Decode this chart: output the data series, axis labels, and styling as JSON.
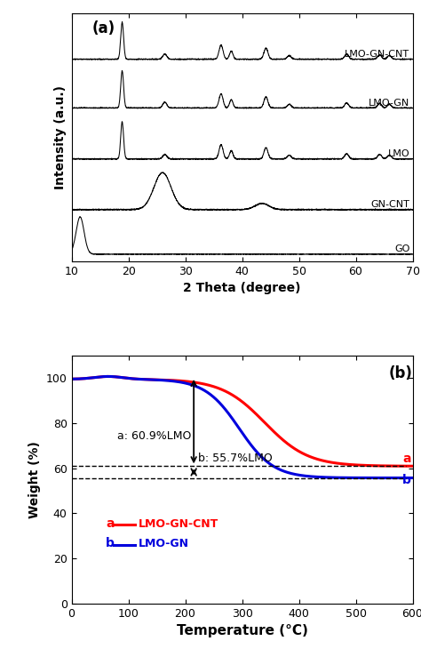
{
  "panel_a_label": "(a)",
  "panel_b_label": "(b)",
  "xrd_xlabel": "2 Theta (degree)",
  "xrd_ylabel": "Intensity (a.u.)",
  "xrd_xlim": [
    10,
    70
  ],
  "xrd_labels": [
    "GO",
    "GN-CNT",
    "LMO",
    "LMO-GN",
    "LMO-GN-CNT"
  ],
  "tga_xlabel": "Temperature (°C)",
  "tga_ylabel": "Weight (%)",
  "tga_xlim": [
    0,
    600
  ],
  "tga_ylim": [
    0,
    110
  ],
  "tga_yticks": [
    0,
    20,
    40,
    60,
    80,
    100
  ],
  "tga_label_a": "a",
  "tga_label_b": "b",
  "tga_legend_a": "LMO-GN-CNT",
  "tga_legend_b": "LMO-GN",
  "tga_color_a": "#ff0000",
  "tga_color_b": "#0000dd",
  "annot_a": "a: 60.9%LMO",
  "annot_b": "b: 55.7%LMO",
  "dashed_level_a": 60.9,
  "dashed_level_b": 55.7
}
